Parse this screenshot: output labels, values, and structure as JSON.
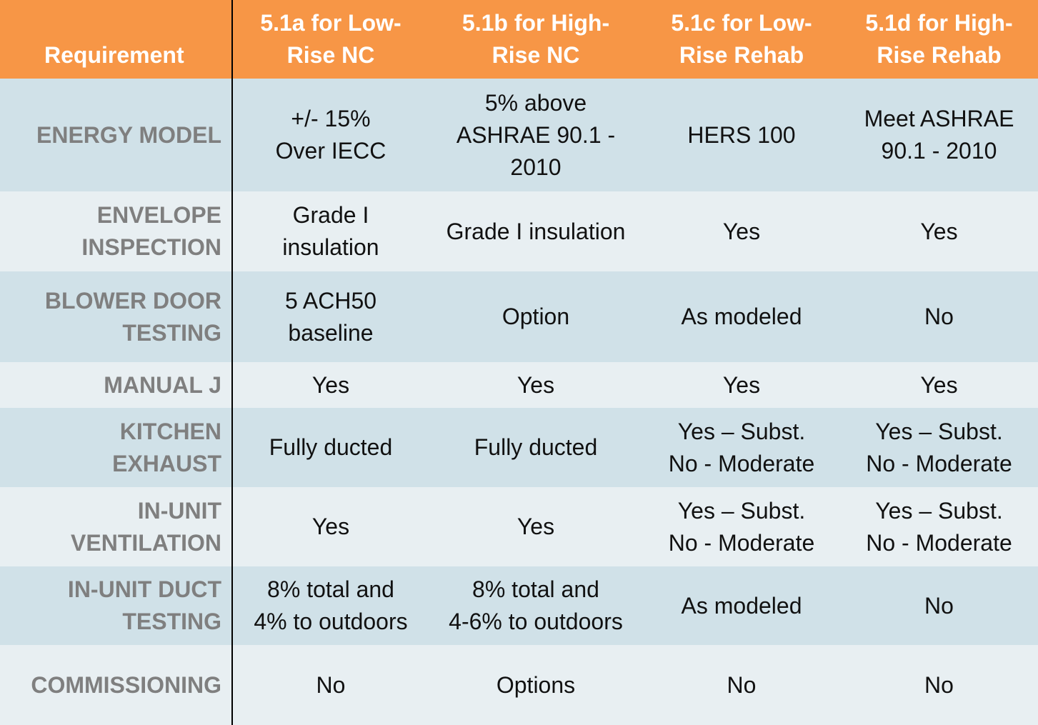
{
  "header": {
    "requirement": "Requirement",
    "columns": [
      "5.1a for Low-\nRise NC",
      "5.1b for High-\nRise NC",
      "5.1c for Low-\nRise Rehab",
      "5.1d for High-\nRise Rehab"
    ]
  },
  "rows": [
    {
      "label": "ENERGY MODEL",
      "values": [
        "+/- 15%\nOver IECC",
        "5% above\nASHRAE 90.1 -\n2010",
        "HERS 100",
        "Meet ASHRAE\n90.1 - 2010"
      ]
    },
    {
      "label": "ENVELOPE\nINSPECTION",
      "values": [
        "Grade I\ninsulation",
        "Grade I insulation",
        "Yes",
        "Yes"
      ]
    },
    {
      "label": "BLOWER DOOR\nTESTING",
      "values": [
        "5 ACH50\nbaseline",
        "Option",
        "As modeled",
        "No"
      ]
    },
    {
      "label": "MANUAL J",
      "values": [
        "Yes",
        "Yes",
        "Yes",
        "Yes"
      ]
    },
    {
      "label": "KITCHEN EXHAUST",
      "values": [
        "Fully ducted",
        "Fully ducted",
        "Yes – Subst.\nNo - Moderate",
        "Yes – Subst.\nNo - Moderate"
      ]
    },
    {
      "label": "IN-UNIT\nVENTILATION",
      "values": [
        "Yes",
        "Yes",
        "Yes – Subst.\nNo - Moderate",
        "Yes – Subst.\nNo - Moderate"
      ]
    },
    {
      "label": "IN-UNIT DUCT\nTESTING",
      "values": [
        "8% total and\n4% to outdoors",
        "8% total and\n4-6% to outdoors",
        "As modeled",
        "No"
      ]
    },
    {
      "label": "COMMISSIONING",
      "values": [
        "No",
        "Options",
        "No",
        "No"
      ]
    }
  ],
  "colors": {
    "header_bg": "#f79646",
    "row_dark": "#d0e1e8",
    "row_light": "#e8eff2",
    "label_text": "#7f7f7f"
  }
}
